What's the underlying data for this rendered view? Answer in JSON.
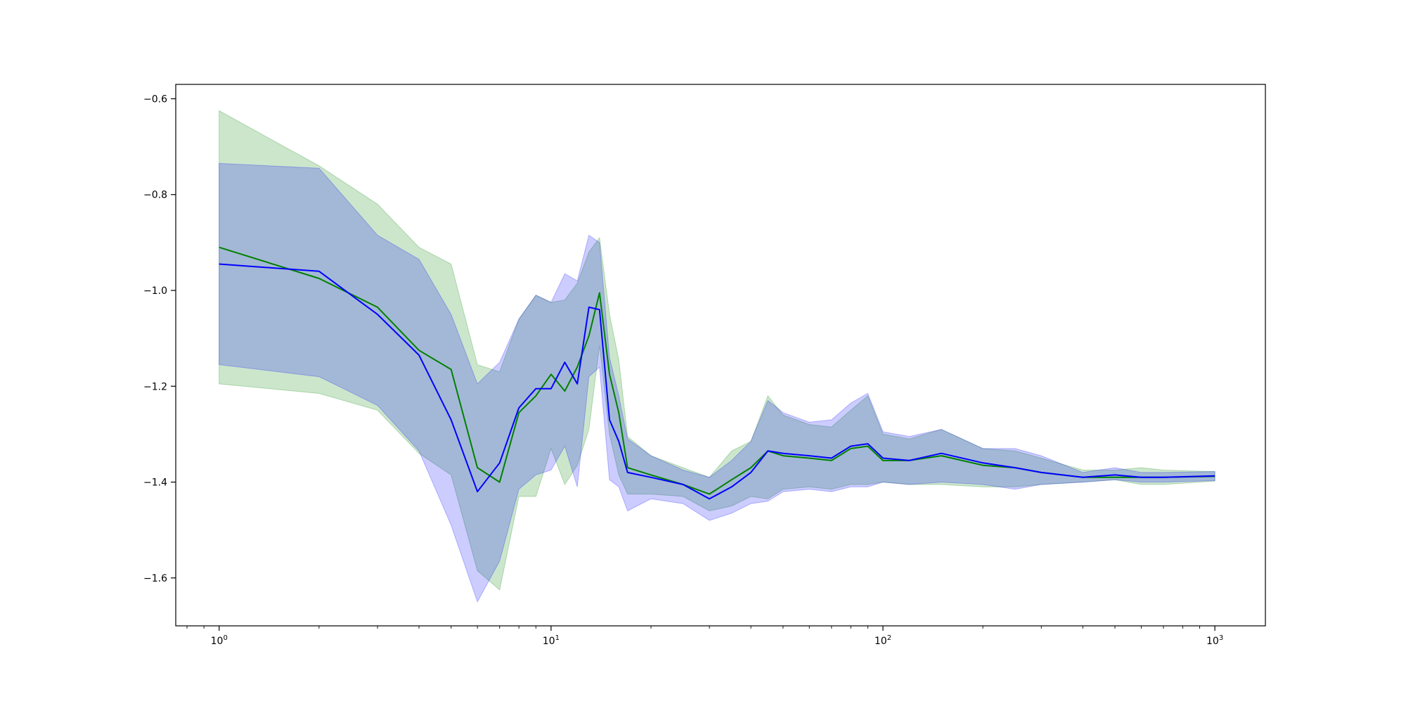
{
  "chart_data": {
    "type": "line",
    "title": "",
    "xlabel": "",
    "ylabel": "",
    "x_scale": "log",
    "xlim": [
      0.74,
      1420
    ],
    "ylim": [
      -1.7,
      -0.57
    ],
    "x_ticks": [
      1,
      10,
      100,
      1000
    ],
    "x_tick_labels": [
      {
        "base": "10",
        "exp": "0"
      },
      {
        "base": "10",
        "exp": "1"
      },
      {
        "base": "10",
        "exp": "2"
      },
      {
        "base": "10",
        "exp": "3"
      }
    ],
    "y_ticks": [
      -0.6,
      -0.8,
      -1.0,
      -1.2,
      -1.4,
      -1.6
    ],
    "y_tick_labels": [
      "−0.6",
      "−0.8",
      "−1.0",
      "−1.2",
      "−1.4",
      "−1.6"
    ],
    "grid": false,
    "legend": "none",
    "series": [
      {
        "color": "#008000",
        "band_color": "#008000",
        "band_opacity": 0.2,
        "points": [
          [
            1,
            -0.91,
            -0.625,
            -1.195
          ],
          [
            2,
            -0.975,
            -0.74,
            -1.215
          ],
          [
            3,
            -1.035,
            -0.82,
            -1.25
          ],
          [
            4,
            -1.125,
            -0.91,
            -1.34
          ],
          [
            5,
            -1.165,
            -0.945,
            -1.385
          ],
          [
            6,
            -1.37,
            -1.155,
            -1.585
          ],
          [
            7,
            -1.4,
            -1.17,
            -1.625
          ],
          [
            8,
            -1.255,
            -1.06,
            -1.43
          ],
          [
            9,
            -1.22,
            -1.01,
            -1.43
          ],
          [
            10,
            -1.175,
            -1.025,
            -1.33
          ],
          [
            11,
            -1.21,
            -1.02,
            -1.405
          ],
          [
            12,
            -1.16,
            -0.985,
            -1.365
          ],
          [
            13,
            -1.095,
            -0.92,
            -1.29
          ],
          [
            14,
            -1.005,
            -0.89,
            -1.115
          ],
          [
            15,
            -1.175,
            -1.05,
            -1.3
          ],
          [
            16,
            -1.255,
            -1.145,
            -1.385
          ],
          [
            17,
            -1.37,
            -1.305,
            -1.425
          ],
          [
            20,
            -1.385,
            -1.345,
            -1.425
          ],
          [
            25,
            -1.405,
            -1.37,
            -1.43
          ],
          [
            30,
            -1.425,
            -1.39,
            -1.46
          ],
          [
            35,
            -1.395,
            -1.335,
            -1.45
          ],
          [
            40,
            -1.37,
            -1.315,
            -1.43
          ],
          [
            45,
            -1.335,
            -1.22,
            -1.435
          ],
          [
            50,
            -1.345,
            -1.26,
            -1.415
          ],
          [
            60,
            -1.35,
            -1.28,
            -1.41
          ],
          [
            70,
            -1.355,
            -1.285,
            -1.415
          ],
          [
            80,
            -1.33,
            -1.25,
            -1.405
          ],
          [
            90,
            -1.325,
            -1.22,
            -1.405
          ],
          [
            100,
            -1.355,
            -1.3,
            -1.4
          ],
          [
            120,
            -1.355,
            -1.31,
            -1.405
          ],
          [
            150,
            -1.345,
            -1.29,
            -1.405
          ],
          [
            200,
            -1.365,
            -1.33,
            -1.41
          ],
          [
            250,
            -1.37,
            -1.335,
            -1.41
          ],
          [
            300,
            -1.38,
            -1.35,
            -1.405
          ],
          [
            400,
            -1.39,
            -1.375,
            -1.4
          ],
          [
            500,
            -1.39,
            -1.375,
            -1.395
          ],
          [
            600,
            -1.39,
            -1.37,
            -1.405
          ],
          [
            700,
            -1.39,
            -1.375,
            -1.405
          ],
          [
            1000,
            -1.388,
            -1.378,
            -1.398
          ]
        ]
      },
      {
        "color": "#0000ff",
        "band_color": "#0000ff",
        "band_opacity": 0.2,
        "points": [
          [
            1,
            -0.945,
            -0.735,
            -1.155
          ],
          [
            2,
            -0.96,
            -0.745,
            -1.18
          ],
          [
            3,
            -1.05,
            -0.885,
            -1.24
          ],
          [
            4,
            -1.135,
            -0.935,
            -1.335
          ],
          [
            5,
            -1.27,
            -1.05,
            -1.49
          ],
          [
            6,
            -1.42,
            -1.195,
            -1.65
          ],
          [
            7,
            -1.36,
            -1.15,
            -1.565
          ],
          [
            8,
            -1.245,
            -1.06,
            -1.415
          ],
          [
            9,
            -1.205,
            -1.01,
            -1.385
          ],
          [
            10,
            -1.205,
            -1.025,
            -1.375
          ],
          [
            11,
            -1.15,
            -0.965,
            -1.325
          ],
          [
            12,
            -1.195,
            -0.98,
            -1.41
          ],
          [
            13,
            -1.035,
            -0.885,
            -1.18
          ],
          [
            14,
            -1.04,
            -0.9,
            -1.16
          ],
          [
            15,
            -1.27,
            -1.14,
            -1.395
          ],
          [
            16,
            -1.315,
            -1.22,
            -1.41
          ],
          [
            17,
            -1.38,
            -1.31,
            -1.46
          ],
          [
            20,
            -1.39,
            -1.345,
            -1.435
          ],
          [
            25,
            -1.405,
            -1.375,
            -1.445
          ],
          [
            30,
            -1.435,
            -1.39,
            -1.48
          ],
          [
            35,
            -1.41,
            -1.355,
            -1.465
          ],
          [
            40,
            -1.38,
            -1.315,
            -1.445
          ],
          [
            45,
            -1.335,
            -1.23,
            -1.44
          ],
          [
            50,
            -1.34,
            -1.255,
            -1.42
          ],
          [
            60,
            -1.345,
            -1.275,
            -1.415
          ],
          [
            70,
            -1.35,
            -1.27,
            -1.42
          ],
          [
            80,
            -1.325,
            -1.235,
            -1.41
          ],
          [
            90,
            -1.32,
            -1.215,
            -1.41
          ],
          [
            100,
            -1.35,
            -1.295,
            -1.4
          ],
          [
            120,
            -1.355,
            -1.305,
            -1.405
          ],
          [
            150,
            -1.34,
            -1.29,
            -1.4
          ],
          [
            200,
            -1.36,
            -1.33,
            -1.405
          ],
          [
            250,
            -1.37,
            -1.33,
            -1.415
          ],
          [
            300,
            -1.38,
            -1.345,
            -1.405
          ],
          [
            400,
            -1.39,
            -1.38,
            -1.4
          ],
          [
            500,
            -1.385,
            -1.37,
            -1.395
          ],
          [
            600,
            -1.39,
            -1.38,
            -1.4
          ],
          [
            700,
            -1.39,
            -1.38,
            -1.4
          ],
          [
            1000,
            -1.387,
            -1.378,
            -1.397
          ]
        ]
      }
    ]
  }
}
